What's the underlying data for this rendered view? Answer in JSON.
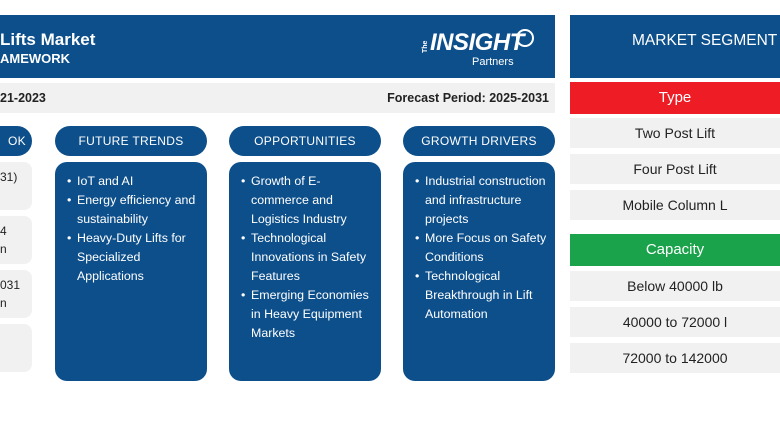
{
  "header": {
    "title": "Lifts Market",
    "subtitle": "AMEWORK",
    "logo": {
      "the": "The",
      "insight": "INSIGHT",
      "partners": "Partners"
    }
  },
  "period": {
    "historical": "21-2023",
    "forecast": "Forecast Period: 2025-2031"
  },
  "outlook": {
    "pill_label": "OK",
    "cells": [
      [
        "31)",
        ""
      ],
      [
        "4",
        "n"
      ],
      [
        "031",
        "n"
      ],
      [
        "",
        ""
      ]
    ]
  },
  "columns": [
    {
      "title": "FUTURE TRENDS",
      "items": [
        "IoT and AI",
        "Energy efficiency and sustainability",
        "Heavy-Duty Lifts for Specialized Applications"
      ]
    },
    {
      "title": "OPPORTUNITIES",
      "items": [
        "Growth of E-commerce and Logistics Industry",
        "Technological Innovations in Safety Features",
        "Emerging Economies in Heavy Equipment Markets"
      ]
    },
    {
      "title": "GROWTH DRIVERS",
      "items": [
        "Industrial construction and infrastructure projects",
        "More Focus on Safety Conditions",
        "Technological Breakthrough in Lift Automation"
      ]
    }
  ],
  "segmentation": {
    "title": "MARKET SEGMENT",
    "groups": [
      {
        "label": "Type",
        "color": "#ee1c25",
        "items": [
          "Two Post Lift",
          "Four Post Lift",
          "Mobile Column L"
        ]
      },
      {
        "label": "Capacity",
        "color": "#1aa34a",
        "items": [
          "Below 40000 lb",
          "40000 to 72000 l",
          "72000 to 142000"
        ]
      }
    ]
  },
  "colors": {
    "primary": "#0d4f8b",
    "panel": "#f1f1f1"
  }
}
